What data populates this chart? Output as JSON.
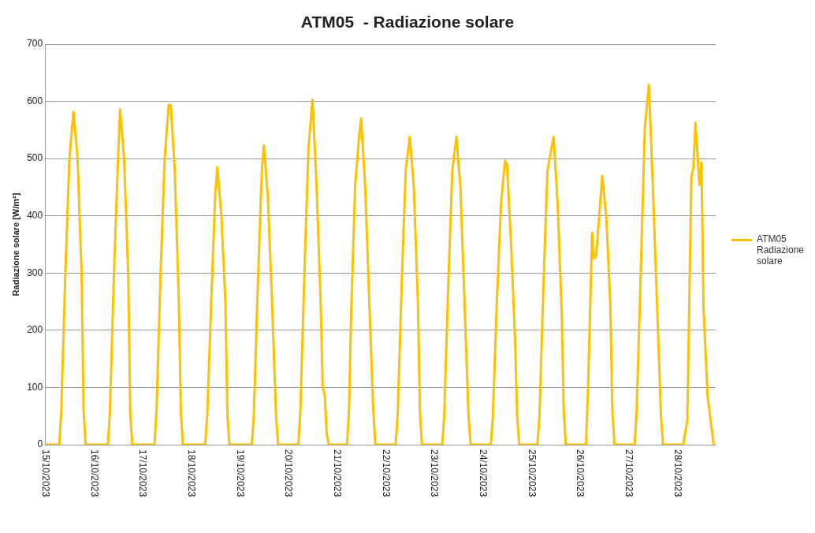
{
  "chart_data": {
    "type": "line",
    "title": "ATM05  - Radiazione solare",
    "ylabel": "Radiazione solare [W/m²]",
    "x": [
      "2023-10-15T00:00",
      "2023-10-15T07:00",
      "2023-10-15T08:00",
      "2023-10-15T10:00",
      "2023-10-15T12:00",
      "2023-10-15T14:00",
      "2023-10-15T16:00",
      "2023-10-15T18:00",
      "2023-10-15T19:00",
      "2023-10-15T20:00",
      "2023-10-16T07:00",
      "2023-10-16T08:00",
      "2023-10-16T10:00",
      "2023-10-16T12:00",
      "2023-10-16T13:00",
      "2023-10-16T15:00",
      "2023-10-16T17:00",
      "2023-10-16T18:00",
      "2023-10-16T19:00",
      "2023-10-17T06:00",
      "2023-10-17T07:00",
      "2023-10-17T09:00",
      "2023-10-17T11:00",
      "2023-10-17T13:00",
      "2023-10-17T14:00",
      "2023-10-17T16:00",
      "2023-10-17T18:00",
      "2023-10-17T19:00",
      "2023-10-17T20:00",
      "2023-10-18T07:00",
      "2023-10-18T08:00",
      "2023-10-18T10:00",
      "2023-10-18T12:00",
      "2023-10-18T13:00",
      "2023-10-18T15:00",
      "2023-10-18T17:00",
      "2023-10-18T18:00",
      "2023-10-18T19:00",
      "2023-10-19T06:00",
      "2023-10-19T07:00",
      "2023-10-19T09:00",
      "2023-10-19T11:00",
      "2023-10-19T12:00",
      "2023-10-19T14:00",
      "2023-10-19T16:00",
      "2023-10-19T18:00",
      "2023-10-19T19:00",
      "2023-10-20T05:00",
      "2023-10-20T06:00",
      "2023-10-20T08:00",
      "2023-10-20T10:00",
      "2023-10-20T12:00",
      "2023-10-20T14:00",
      "2023-10-20T16:00",
      "2023-10-20T17:00",
      "2023-10-20T18:00",
      "2023-10-20T19:00",
      "2023-10-20T20:00",
      "2023-10-21T05:00",
      "2023-10-21T06:00",
      "2023-10-21T07:00",
      "2023-10-21T09:00",
      "2023-10-21T11:00",
      "2023-10-21T12:00",
      "2023-10-21T14:00",
      "2023-10-21T16:00",
      "2023-10-21T18:00",
      "2023-10-21T19:00",
      "2023-10-22T05:00",
      "2023-10-22T06:00",
      "2023-10-22T08:00",
      "2023-10-22T10:00",
      "2023-10-22T12:00",
      "2023-10-22T14:00",
      "2023-10-22T16:00",
      "2023-10-22T17:00",
      "2023-10-22T18:00",
      "2023-10-23T04:00",
      "2023-10-23T05:00",
      "2023-10-23T07:00",
      "2023-10-23T09:00",
      "2023-10-23T11:00",
      "2023-10-23T13:00",
      "2023-10-23T15:00",
      "2023-10-23T17:00",
      "2023-10-23T18:00",
      "2023-10-24T04:00",
      "2023-10-24T05:00",
      "2023-10-24T07:00",
      "2023-10-24T09:00",
      "2023-10-24T11:00",
      "2023-10-24T12:00",
      "2023-10-24T14:00",
      "2023-10-24T16:00",
      "2023-10-24T17:00",
      "2023-10-24T18:00",
      "2023-10-25T03:00",
      "2023-10-25T04:00",
      "2023-10-25T06:00",
      "2023-10-25T08:00",
      "2023-10-25T11:00",
      "2023-10-25T13:00",
      "2023-10-25T15:00",
      "2023-10-25T16:00",
      "2023-10-25T17:00",
      "2023-10-26T03:00",
      "2023-10-26T04:00",
      "2023-10-26T06:00",
      "2023-10-26T07:00",
      "2023-10-26T08:00",
      "2023-10-26T11:00",
      "2023-10-26T13:00",
      "2023-10-26T15:00",
      "2023-10-26T16:00",
      "2023-10-26T17:00",
      "2023-10-27T03:00",
      "2023-10-27T04:00",
      "2023-10-27T06:00",
      "2023-10-27T08:00",
      "2023-10-27T10:00",
      "2023-10-27T12:00",
      "2023-10-27T14:00",
      "2023-10-27T16:00",
      "2023-10-27T17:00",
      "2023-10-28T03:00",
      "2023-10-28T05:00",
      "2023-10-28T07:00",
      "2023-10-28T08:00",
      "2023-10-28T09:00",
      "2023-10-28T11:00",
      "2023-10-28T12:00",
      "2023-10-28T13:00",
      "2023-10-28T15:00",
      "2023-10-28T18:00"
    ],
    "series": [
      {
        "name": "ATM05 Radiazione solare",
        "color": "#ffc000",
        "values": [
          0,
          0,
          60,
          300,
          500,
          582,
          500,
          300,
          60,
          0,
          0,
          60,
          300,
          500,
          586,
          500,
          300,
          60,
          0,
          0,
          60,
          300,
          500,
          594,
          594,
          480,
          250,
          60,
          0,
          0,
          50,
          250,
          440,
          485,
          400,
          250,
          50,
          0,
          0,
          50,
          280,
          480,
          523,
          430,
          250,
          50,
          0,
          0,
          60,
          300,
          520,
          603,
          450,
          250,
          101,
          87,
          20,
          0,
          0,
          60,
          220,
          450,
          540,
          570,
          450,
          250,
          60,
          0,
          0,
          50,
          280,
          480,
          538,
          450,
          250,
          60,
          0,
          0,
          50,
          280,
          480,
          538,
          450,
          250,
          50,
          0,
          0,
          50,
          250,
          420,
          496,
          490,
          350,
          180,
          50,
          0,
          0,
          50,
          280,
          480,
          538,
          420,
          230,
          60,
          0,
          0,
          100,
          370,
          325,
          330,
          470,
          398,
          244,
          60,
          0,
          0,
          60,
          300,
          552,
          629,
          450,
          250,
          50,
          0,
          0,
          43,
          468,
          484,
          563,
          454,
          493,
          239,
          85,
          0
        ]
      }
    ],
    "xlim": [
      "2023-10-15T00:00",
      "2023-10-28T19:00"
    ],
    "xticks": [
      {
        "value": "2023-10-15",
        "label": "15/10/2023"
      },
      {
        "value": "2023-10-16",
        "label": "16/10/2023"
      },
      {
        "value": "2023-10-17",
        "label": "17/10/2023"
      },
      {
        "value": "2023-10-18",
        "label": "18/10/2023"
      },
      {
        "value": "2023-10-19",
        "label": "19/10/2023"
      },
      {
        "value": "2023-10-20",
        "label": "20/10/2023"
      },
      {
        "value": "2023-10-21",
        "label": "21/10/2023"
      },
      {
        "value": "2023-10-22",
        "label": "22/10/2023"
      },
      {
        "value": "2023-10-23",
        "label": "23/10/2023"
      },
      {
        "value": "2023-10-24",
        "label": "24/10/2023"
      },
      {
        "value": "2023-10-25",
        "label": "25/10/2023"
      },
      {
        "value": "2023-10-26",
        "label": "26/10/2023"
      },
      {
        "value": "2023-10-27",
        "label": "27/10/2023"
      },
      {
        "value": "2023-10-28",
        "label": "28/10/2023"
      }
    ],
    "ylim": [
      0,
      700
    ],
    "yticks": [
      0,
      100,
      200,
      300,
      400,
      500,
      600,
      700
    ],
    "grid": "y",
    "legend": "right",
    "marker": "none",
    "line_style": "solid"
  }
}
